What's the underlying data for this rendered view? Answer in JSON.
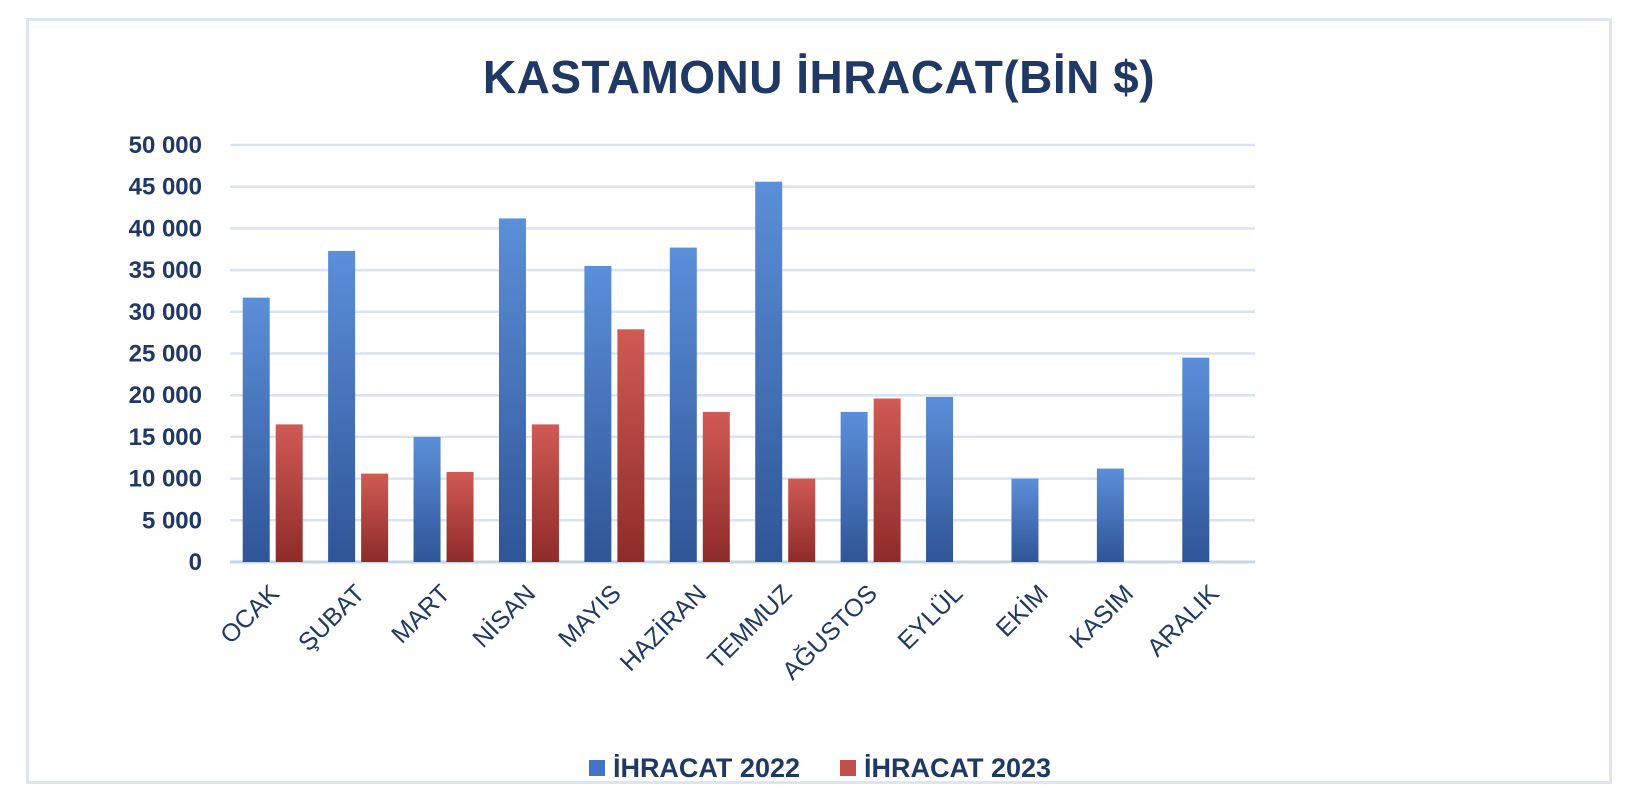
{
  "chart_data": {
    "type": "bar",
    "title": "KASTAMONU İHRACAT(BİN $)",
    "categories": [
      "OCAK",
      "ŞUBAT",
      "MART",
      "NİSAN",
      "MAYIS",
      "HAZİRAN",
      "TEMMUZ",
      "AĞUSTOS",
      "EYLÜL",
      "EKİM",
      "KASIM",
      "ARALIK"
    ],
    "series": [
      {
        "name": "İHRACAT 2022",
        "color": "#4472c4",
        "values": [
          31700,
          37300,
          15000,
          41200,
          35500,
          37700,
          45600,
          18000,
          19800,
          10000,
          11200,
          24500
        ]
      },
      {
        "name": "İHRACAT 2023",
        "color": "#c0504d",
        "values": [
          16500,
          10600,
          10800,
          16500,
          27900,
          18000,
          10000,
          19600,
          null,
          null,
          null,
          null
        ]
      }
    ],
    "ylim": [
      0,
      50000
    ],
    "yticks": [
      "0",
      "5 000",
      "10 000",
      "15 000",
      "20 000",
      "25 000",
      "30 000",
      "35 000",
      "40 000",
      "45 000",
      "50 000"
    ],
    "grid": true,
    "legend_position": "bottom"
  }
}
